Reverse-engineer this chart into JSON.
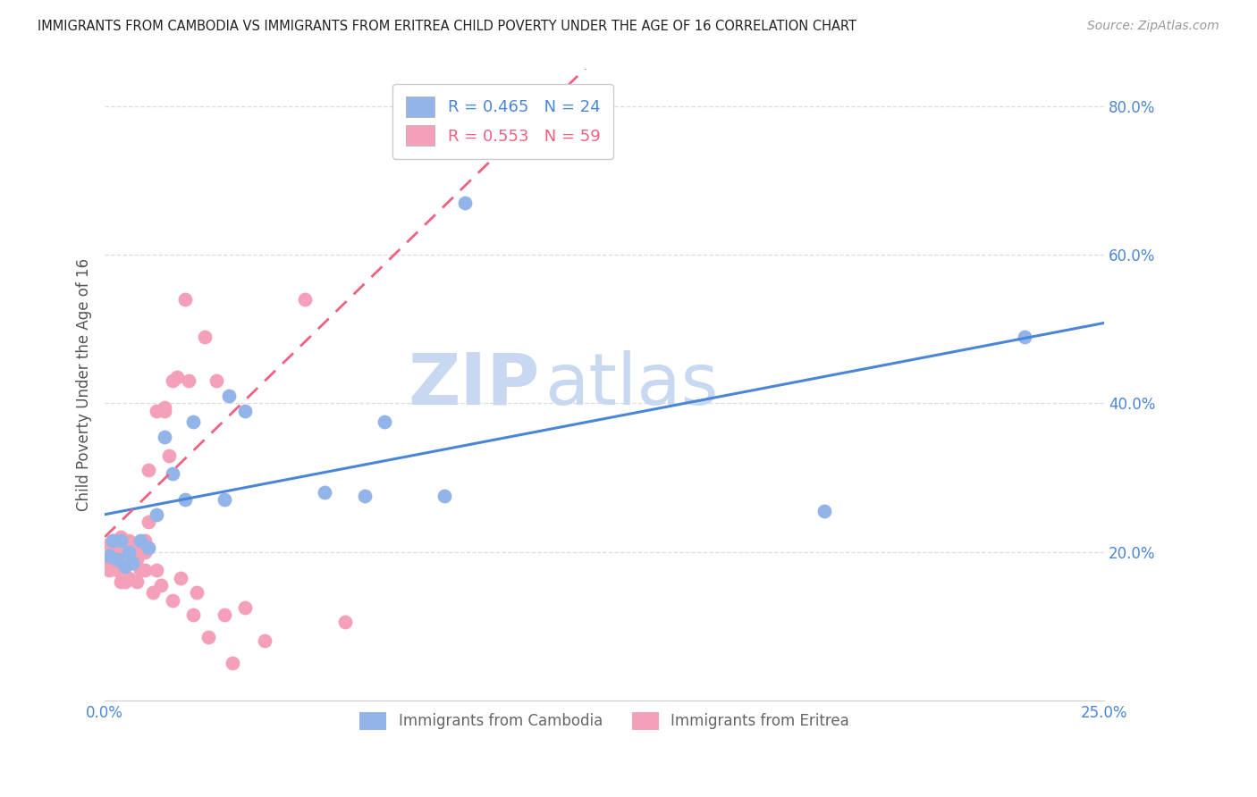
{
  "title": "IMMIGRANTS FROM CAMBODIA VS IMMIGRANTS FROM ERITREA CHILD POVERTY UNDER THE AGE OF 16 CORRELATION CHART",
  "source": "Source: ZipAtlas.com",
  "ylabel": "Child Poverty Under the Age of 16",
  "xlim": [
    0.0,
    0.25
  ],
  "ylim": [
    0.0,
    0.85
  ],
  "yticks": [
    0.2,
    0.4,
    0.6,
    0.8
  ],
  "ytick_labels": [
    "20.0%",
    "40.0%",
    "60.0%",
    "80.0%"
  ],
  "xticks": [
    0.0,
    0.05,
    0.1,
    0.15,
    0.2,
    0.25
  ],
  "xtick_labels": [
    "0.0%",
    "",
    "",
    "",
    "",
    "25.0%"
  ],
  "cambodia_color": "#92b4e8",
  "eritrea_color": "#f4a0b8",
  "cambodia_line_color": "#4a86d8",
  "eritrea_line_color": "#f06080",
  "watermark_zip": "ZIP",
  "watermark_atlas": "atlas",
  "watermark_color": "#c8d8f0",
  "R_cambodia": 0.465,
  "N_cambodia": 24,
  "R_eritrea": 0.553,
  "N_eritrea": 59,
  "cambodia_x": [
    0.001,
    0.002,
    0.003,
    0.004,
    0.005,
    0.006,
    0.007,
    0.009,
    0.011,
    0.013,
    0.015,
    0.017,
    0.02,
    0.022,
    0.03,
    0.031,
    0.035,
    0.055,
    0.065,
    0.07,
    0.085,
    0.09,
    0.18,
    0.23
  ],
  "cambodia_y": [
    0.195,
    0.215,
    0.19,
    0.215,
    0.18,
    0.2,
    0.185,
    0.215,
    0.205,
    0.25,
    0.355,
    0.305,
    0.27,
    0.375,
    0.27,
    0.41,
    0.39,
    0.28,
    0.275,
    0.375,
    0.275,
    0.67,
    0.255,
    0.49
  ],
  "eritrea_x": [
    0.001,
    0.001,
    0.001,
    0.002,
    0.002,
    0.002,
    0.003,
    0.003,
    0.003,
    0.003,
    0.004,
    0.004,
    0.004,
    0.005,
    0.005,
    0.005,
    0.005,
    0.005,
    0.006,
    0.006,
    0.006,
    0.006,
    0.007,
    0.007,
    0.007,
    0.008,
    0.008,
    0.008,
    0.009,
    0.009,
    0.01,
    0.01,
    0.01,
    0.011,
    0.011,
    0.012,
    0.013,
    0.013,
    0.014,
    0.015,
    0.015,
    0.016,
    0.017,
    0.017,
    0.018,
    0.019,
    0.02,
    0.021,
    0.022,
    0.023,
    0.025,
    0.026,
    0.028,
    0.03,
    0.032,
    0.035,
    0.04,
    0.05,
    0.06
  ],
  "eritrea_y": [
    0.175,
    0.19,
    0.21,
    0.185,
    0.205,
    0.215,
    0.19,
    0.205,
    0.215,
    0.175,
    0.22,
    0.21,
    0.16,
    0.195,
    0.215,
    0.2,
    0.185,
    0.16,
    0.215,
    0.205,
    0.195,
    0.165,
    0.205,
    0.2,
    0.185,
    0.21,
    0.19,
    0.16,
    0.21,
    0.175,
    0.2,
    0.215,
    0.175,
    0.24,
    0.31,
    0.145,
    0.39,
    0.175,
    0.155,
    0.39,
    0.395,
    0.33,
    0.43,
    0.135,
    0.435,
    0.165,
    0.54,
    0.43,
    0.115,
    0.145,
    0.49,
    0.085,
    0.43,
    0.115,
    0.05,
    0.125,
    0.08,
    0.54,
    0.105
  ]
}
